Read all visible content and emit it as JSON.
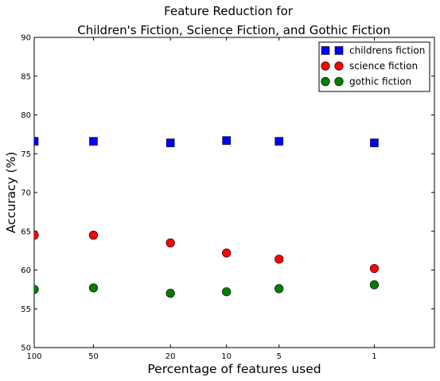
{
  "chart_data": {
    "type": "scatter",
    "title": [
      "Feature Reduction for",
      "Children's Fiction, Science Fiction, and Gothic Fiction"
    ],
    "xlabel": "Percentage of features used",
    "ylabel": "Accuracy (%)",
    "x_ticks": [
      100,
      50,
      20,
      10,
      5,
      1
    ],
    "y_ticks": [
      50,
      55,
      60,
      65,
      70,
      75,
      80,
      85,
      90
    ],
    "ylim": [
      50,
      90
    ],
    "legend_position": "top-right",
    "grid": false,
    "series": [
      {
        "name": "childrens fiction",
        "marker": "square",
        "color": "#0000ff",
        "x": [
          100,
          50,
          20,
          10,
          5,
          1
        ],
        "y": [
          76.6,
          76.6,
          76.4,
          76.7,
          76.6,
          76.4
        ]
      },
      {
        "name": "science fiction",
        "marker": "circle",
        "color": "#ff0000",
        "x": [
          100,
          50,
          20,
          10,
          5,
          1
        ],
        "y": [
          64.5,
          64.5,
          63.5,
          62.2,
          61.4,
          60.2
        ]
      },
      {
        "name": "gothic fiction",
        "marker": "circle",
        "color": "#008000",
        "x": [
          100,
          50,
          20,
          10,
          5,
          1
        ],
        "y": [
          57.5,
          57.7,
          57.0,
          57.2,
          57.6,
          58.1
        ]
      }
    ]
  }
}
